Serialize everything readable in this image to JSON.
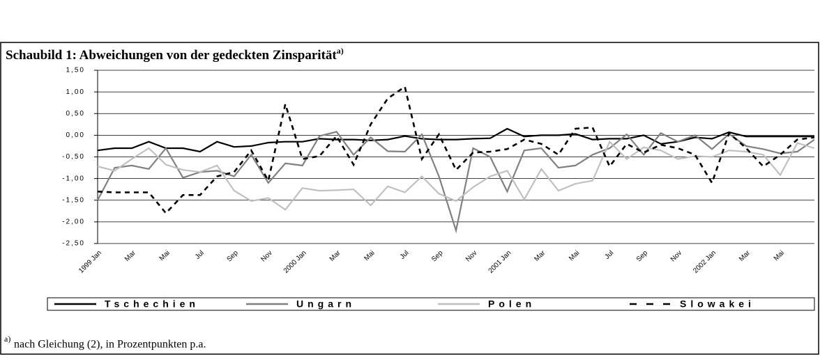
{
  "chart_data": {
    "type": "line",
    "title": "Schaubild 1: Abweichungen von der gedeckten Zinsparität",
    "title_marker": "a)",
    "footnote_marker": "a)",
    "footnote": "nach Gleichung (2), in Prozentpunkten p.a.",
    "categories": [
      "1999 Jan",
      null,
      "Mar",
      null,
      "Mai",
      null,
      "Jul",
      null,
      "Sep",
      null,
      "Nov",
      null,
      "2000 Jan",
      null,
      "Mar",
      null,
      "Mai",
      null,
      "Jul",
      null,
      "Sep",
      null,
      "Nov",
      null,
      "2001 Jan",
      null,
      "Mar",
      null,
      "Mai",
      null,
      "Jul",
      null,
      "Sep",
      null,
      "Nov",
      null,
      "2002 Jan",
      null,
      "Mar",
      null,
      "Mai",
      null,
      null
    ],
    "series": [
      {
        "name": "Tschechien",
        "color": "#000000",
        "line_style": "solid",
        "values": [
          -0.35,
          -0.3,
          -0.3,
          -0.15,
          -0.3,
          -0.3,
          -0.38,
          -0.15,
          -0.27,
          -0.25,
          -0.17,
          -0.15,
          -0.15,
          -0.08,
          -0.1,
          -0.1,
          -0.12,
          -0.1,
          -0.02,
          -0.08,
          -0.1,
          -0.1,
          -0.08,
          -0.07,
          0.15,
          -0.03,
          0,
          0,
          0.03,
          -0.1,
          -0.08,
          -0.08,
          0,
          -0.2,
          -0.15,
          -0.05,
          -0.08,
          0.07,
          -0.03,
          -0.03,
          -0.03,
          -0.03,
          -0.03
        ]
      },
      {
        "name": "Ungarn",
        "color": "#808080",
        "line_style": "solid",
        "values": [
          -1.5,
          -0.75,
          -0.7,
          -0.78,
          -0.3,
          -0.98,
          -0.85,
          -0.82,
          -0.95,
          -0.45,
          -1.1,
          -0.65,
          -0.7,
          -0.02,
          0.08,
          -0.45,
          -0.05,
          -0.37,
          -0.38,
          0.02,
          -0.95,
          -2.2,
          -0.3,
          -0.5,
          -1.3,
          -0.35,
          -0.3,
          -0.75,
          -0.7,
          -0.45,
          -0.3,
          0.02,
          -0.45,
          0.05,
          -0.15,
          0,
          -0.32,
          0.03,
          -0.25,
          -0.32,
          -0.42,
          -0.38,
          -0.1
        ]
      },
      {
        "name": "Polen",
        "color": "#c0c0c0",
        "line_style": "solid",
        "values": [
          -0.72,
          -0.82,
          -0.55,
          -0.3,
          -0.68,
          -0.8,
          -0.85,
          -0.7,
          -1.28,
          -1.52,
          -1.45,
          -1.72,
          -1.22,
          -1.28,
          -1.27,
          -1.25,
          -1.62,
          -1.18,
          -1.32,
          -0.95,
          -1.35,
          -1.52,
          -1.2,
          -0.95,
          -0.82,
          -1.48,
          -0.78,
          -1.28,
          -1.12,
          -1.05,
          -0.15,
          -0.55,
          -0.28,
          -0.35,
          -0.55,
          -0.48,
          -0.5,
          -0.35,
          -0.38,
          -0.45,
          -0.92,
          -0.18,
          -0.3
        ]
      },
      {
        "name": "Slowakei",
        "color": "#000000",
        "line_style": "dashed",
        "values": [
          -1.3,
          -1.32,
          -1.32,
          -1.32,
          -1.8,
          -1.38,
          -1.38,
          -0.95,
          -0.85,
          -0.35,
          -1.05,
          0.72,
          -0.55,
          -0.48,
          -0.02,
          -0.68,
          0.25,
          0.85,
          1.12,
          -0.55,
          0.02,
          -0.8,
          -0.4,
          -0.38,
          -0.32,
          -0.1,
          -0.2,
          -0.45,
          0.15,
          0.18,
          -0.72,
          -0.2,
          -0.4,
          -0.22,
          -0.3,
          -0.45,
          -1.1,
          0.05,
          -0.3,
          -0.72,
          -0.45,
          -0.1,
          -0.05
        ]
      }
    ],
    "ylim": [
      -2.5,
      1.5
    ],
    "yticks": [
      {
        "value": -2.5,
        "label": "-2,50"
      },
      {
        "value": -2,
        "label": "-2,00"
      },
      {
        "value": -1.5,
        "label": "-1,50"
      },
      {
        "value": -1,
        "label": "-1,00"
      },
      {
        "value": -0.5,
        "label": "-0,50"
      },
      {
        "value": 0,
        "label": "0,00"
      },
      {
        "value": 0.5,
        "label": "0,50"
      },
      {
        "value": 1,
        "label": "1,00"
      },
      {
        "value": 1.5,
        "label": "1,50"
      }
    ],
    "grid": true
  }
}
